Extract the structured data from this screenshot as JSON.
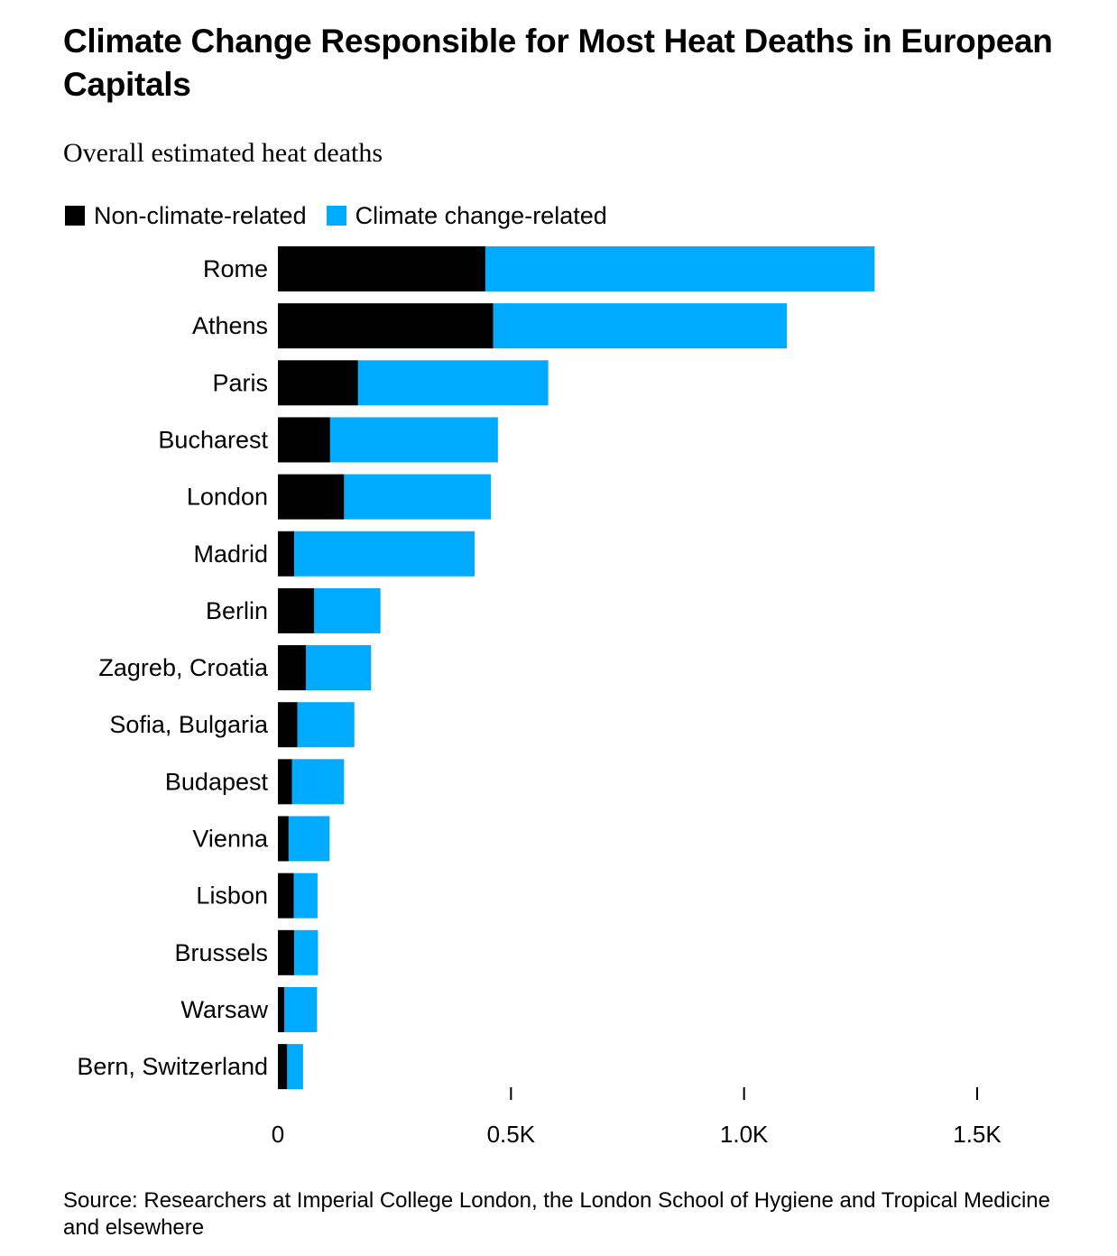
{
  "title": "Climate Change Responsible for Most Heat Deaths in European Capitals",
  "subtitle": "Overall estimated heat deaths",
  "legend": {
    "non_climate": "Non-climate-related",
    "climate": "Climate change-related"
  },
  "colors": {
    "non_climate": "#000000",
    "climate": "#00AAFF"
  },
  "source": "Source: Researchers at Imperial College London, the London School of Hygiene and Tropical Medicine and elsewhere",
  "chart_data": {
    "type": "bar",
    "orientation": "horizontal",
    "stacked": true,
    "title": "Climate Change Responsible for Most Heat Deaths in European Capitals",
    "subtitle": "Overall estimated heat deaths",
    "categories": [
      "Rome",
      "Athens",
      "Paris",
      "Bucharest",
      "London",
      "Madrid",
      "Berlin",
      "Zagreb, Croatia",
      "Sofia, Bulgaria",
      "Budapest",
      "Vienna",
      "Lisbon",
      "Brussels",
      "Warsaw",
      "Bern, Switzerland"
    ],
    "series": [
      {
        "name": "Non-climate-related",
        "values": [
          445,
          462,
          172,
          112,
          142,
          35,
          78,
          60,
          42,
          30,
          23,
          34,
          35,
          14,
          20
        ]
      },
      {
        "name": "Climate change-related",
        "values": [
          835,
          630,
          408,
          360,
          315,
          387,
          142,
          140,
          122,
          112,
          88,
          51,
          51,
          70,
          34
        ]
      }
    ],
    "xlim": [
      0,
      1500
    ],
    "xticks": [
      0,
      500,
      1000,
      1500
    ],
    "xtick_labels": [
      "0",
      "0.5K",
      "1.0K",
      "1.5K"
    ],
    "legend_position": "top-left",
    "grid": false
  }
}
